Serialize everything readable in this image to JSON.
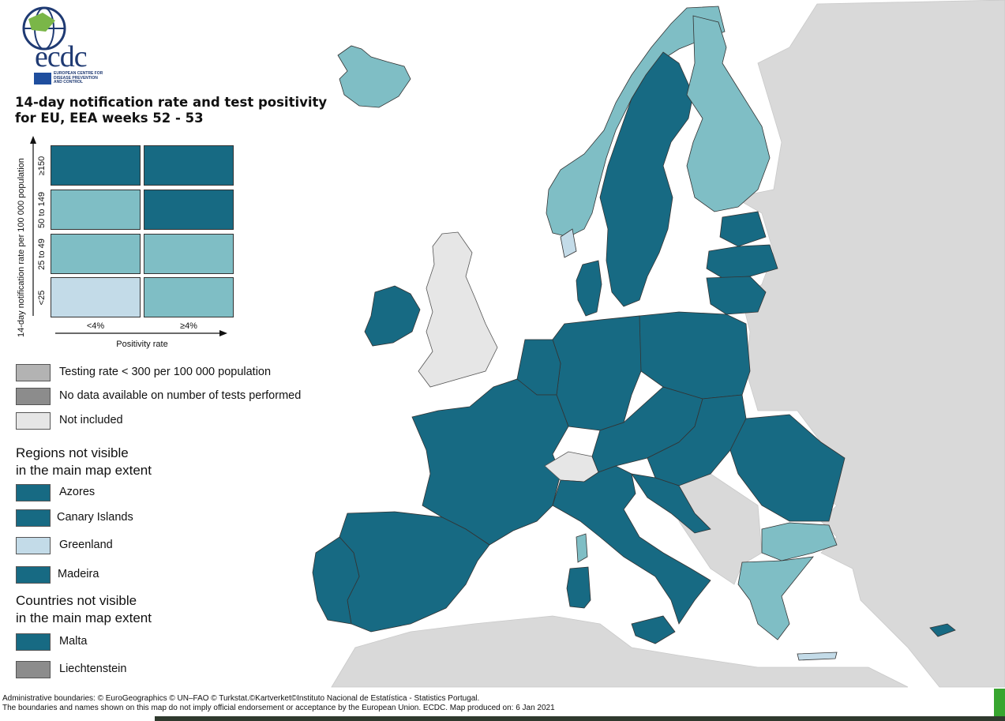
{
  "logo": {
    "wordmark": "ecdc",
    "caption": [
      "EUROPEAN CENTRE FOR",
      "DISEASE PREVENTION",
      "AND CONTROL"
    ]
  },
  "title": [
    "14-day notification rate and test positivity",
    "for EU, EEA weeks 52 - 53"
  ],
  "matrix": {
    "y_axis_label": "14-day notification rate per 100 000 population",
    "x_axis_label": "Positivity rate",
    "rows": [
      "≥150",
      "50 to 149",
      "25 to 49",
      "<25"
    ],
    "columns": [
      "<4%",
      "≥4%"
    ],
    "cells": [
      [
        "dark",
        "dark"
      ],
      [
        "medium",
        "dark"
      ],
      [
        "medium",
        "medium"
      ],
      [
        "light",
        "medium"
      ]
    ]
  },
  "colors": {
    "dark": "#176a83",
    "medium": "#7fbec5",
    "light": "#c3dbe8",
    "testing_low": "#b3b3b3",
    "no_data": "#8c8c8c",
    "not_included": "#e6e6e6",
    "sea": "#ffffff",
    "non_eu_land": "#d9d9d9"
  },
  "legend": {
    "testing_rate": "Testing rate < 300 per 100 000 population",
    "no_data": "No data available on number of tests performed",
    "not_included": "Not included"
  },
  "regions_not_visible": {
    "title": [
      "Regions not visible",
      "in the main map extent"
    ],
    "items": [
      {
        "label": "Azores",
        "class": "dark"
      },
      {
        "label": "Canary Islands",
        "class": "dark"
      },
      {
        "label": "Greenland",
        "class": "light"
      },
      {
        "label": "Madeira",
        "class": "dark"
      }
    ]
  },
  "countries_not_visible": {
    "title": [
      "Countries not visible",
      "in the main map extent"
    ],
    "items": [
      {
        "label": "Malta",
        "class": "dark"
      },
      {
        "label": "Liechtenstein",
        "class": "no_data"
      }
    ]
  },
  "footer": [
    "Administrative boundaries: © EuroGeographics © UN–FAO © Turkstat.©Kartverket©Instituto Nacional de Estatística - Statistics Portugal.",
    "The boundaries and names shown on this map do not imply official endorsement or acceptance by the European Union. ECDC. Map produced on: 6 Jan 2021"
  ],
  "map": {
    "countries": [
      {
        "name": "Iceland",
        "class": "medium"
      },
      {
        "name": "Norway",
        "class": "medium"
      },
      {
        "name": "Sweden",
        "class": "dark"
      },
      {
        "name": "Finland",
        "class": "medium"
      },
      {
        "name": "Denmark",
        "class": "dark"
      },
      {
        "name": "Ireland",
        "class": "dark"
      },
      {
        "name": "United Kingdom",
        "class": "not_included"
      },
      {
        "name": "Estonia",
        "class": "dark"
      },
      {
        "name": "Latvia",
        "class": "dark"
      },
      {
        "name": "Lithuania",
        "class": "dark"
      },
      {
        "name": "Poland",
        "class": "dark"
      },
      {
        "name": "Germany",
        "class": "dark"
      },
      {
        "name": "Netherlands",
        "class": "dark"
      },
      {
        "name": "Belgium",
        "class": "dark"
      },
      {
        "name": "France",
        "class": "dark"
      },
      {
        "name": "Spain",
        "class": "dark"
      },
      {
        "name": "Portugal",
        "class": "dark"
      },
      {
        "name": "Italy",
        "class": "dark"
      },
      {
        "name": "Switzerland",
        "class": "not_included"
      },
      {
        "name": "Austria",
        "class": "dark"
      },
      {
        "name": "Czechia",
        "class": "dark"
      },
      {
        "name": "Slovakia",
        "class": "dark"
      },
      {
        "name": "Hungary",
        "class": "dark"
      },
      {
        "name": "Slovenia",
        "class": "dark"
      },
      {
        "name": "Croatia",
        "class": "dark"
      },
      {
        "name": "Romania",
        "class": "dark"
      },
      {
        "name": "Bulgaria",
        "class": "medium"
      },
      {
        "name": "Greece",
        "class": "medium"
      },
      {
        "name": "Cyprus",
        "class": "dark"
      },
      {
        "name": "Western Balkans",
        "class": "non_eu"
      },
      {
        "name": "Eastern neighbours",
        "class": "non_eu"
      }
    ]
  }
}
